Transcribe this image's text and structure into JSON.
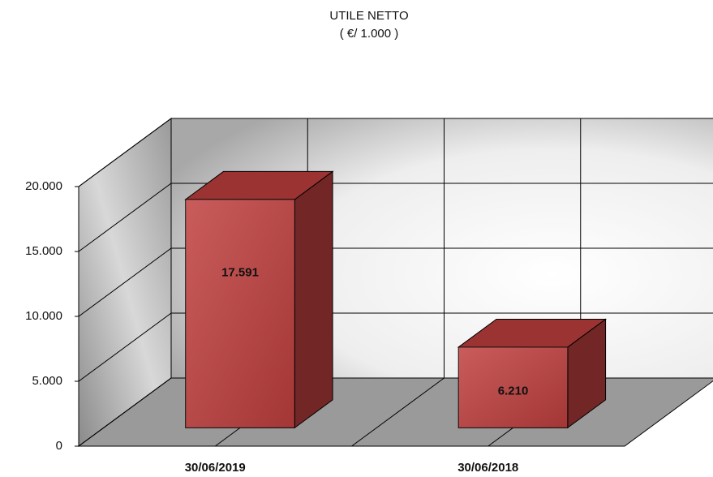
{
  "chart_data": {
    "type": "bar3d",
    "title": "UTILE NETTO",
    "subtitle": "( €/ 1.000 )",
    "categories": [
      "30/06/2019",
      "30/06/2018"
    ],
    "values": [
      17591,
      6210
    ],
    "value_labels": [
      "17.591",
      "6.210"
    ],
    "color": "#c0403f",
    "ylim": [
      0,
      20000
    ],
    "yticks": [
      0,
      {
        "value": 5000,
        "label": "5.000"
      },
      {
        "value": 10000,
        "label": "10.000"
      },
      {
        "value": 15000,
        "label": "15.000"
      },
      {
        "value": 20000,
        "label": "20.000"
      }
    ],
    "grid": true
  }
}
